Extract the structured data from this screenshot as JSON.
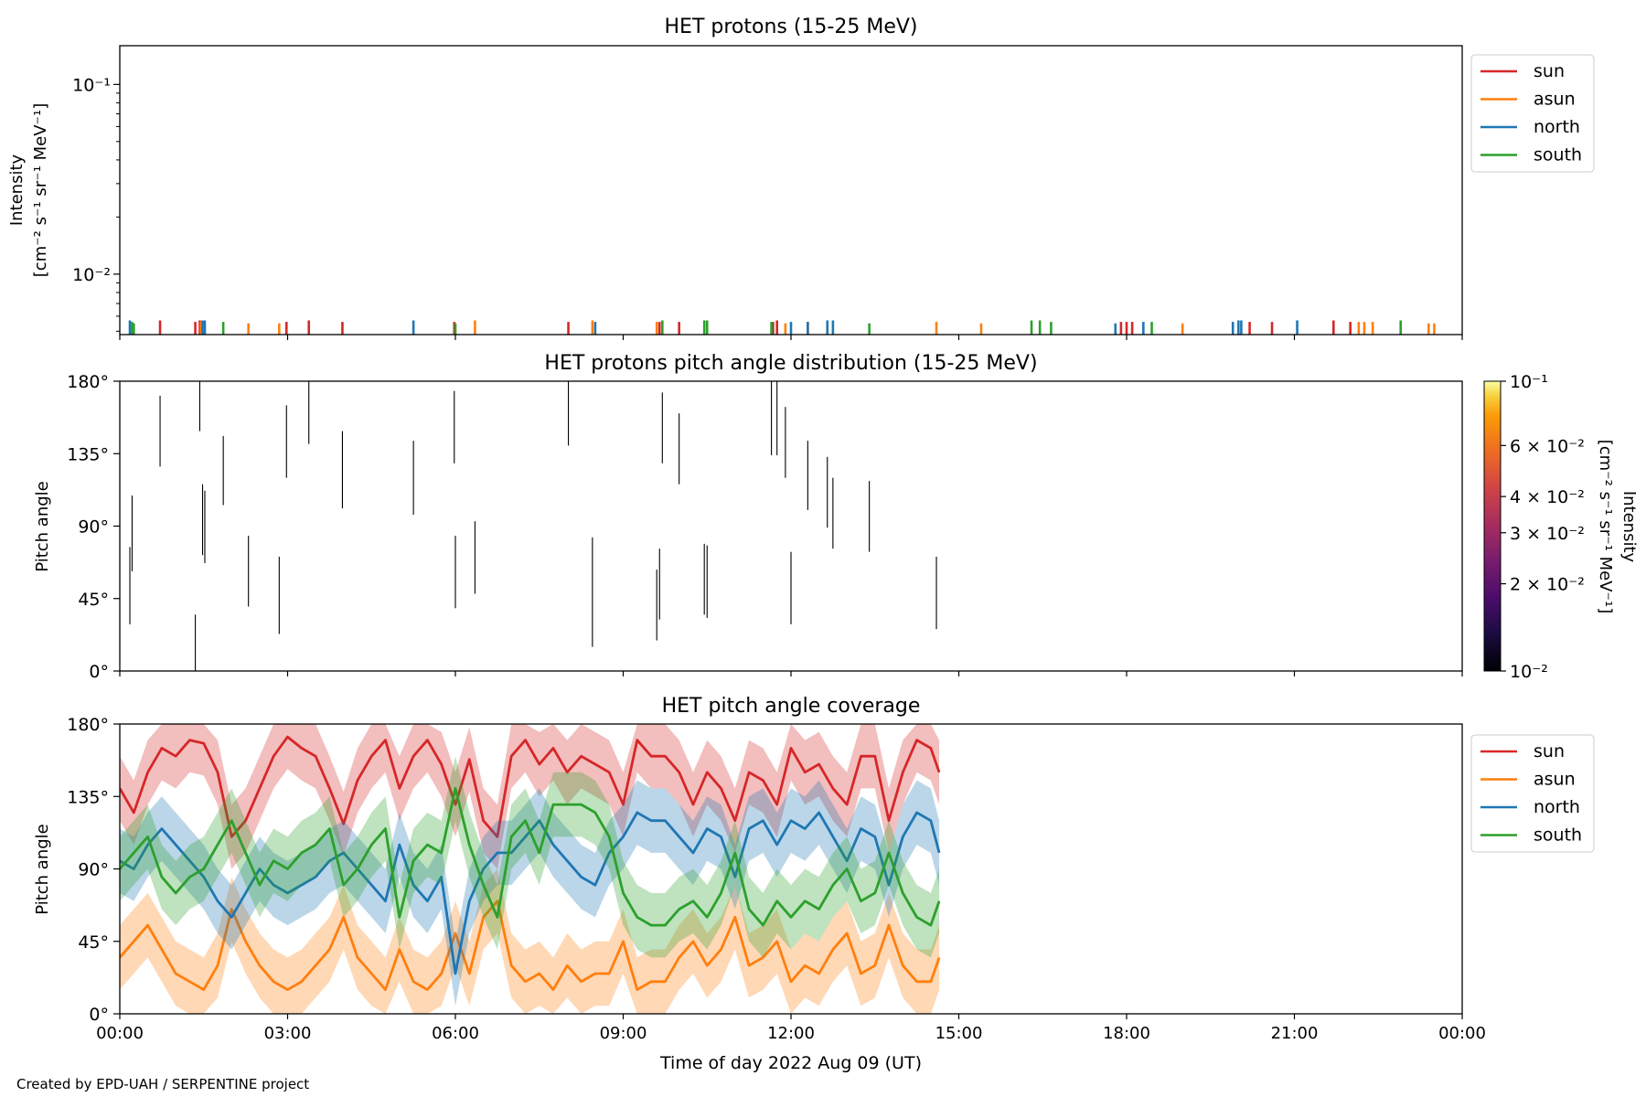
{
  "footer": "Created by EPD-UAH / SERPENTINE project",
  "xlabel": "Time of day 2022 Aug 09 (UT)",
  "colors": {
    "sun": "#d62728",
    "asun": "#ff7f0e",
    "north": "#1f77b4",
    "south": "#2ca02c"
  },
  "chart_data": [
    {
      "type": "line",
      "title": "HET protons (15-25 MeV)",
      "ylabel_line1": "Intensity",
      "ylabel_line2": "[cm⁻² s⁻¹ sr⁻¹ MeV⁻¹]",
      "yscale": "log",
      "ylim": [
        0.0048,
        0.16
      ],
      "xlim_hours": [
        0,
        24
      ],
      "x_tick_labels": [
        "00:00",
        "03:00",
        "06:00",
        "09:00",
        "12:00",
        "15:00",
        "18:00",
        "21:00",
        "00:00"
      ],
      "y_tick_labels": [
        "10⁻²",
        "10⁻¹"
      ],
      "legend_location": "upper right, outside",
      "legend": [
        "sun",
        "asun",
        "north",
        "south"
      ],
      "note": "sparse single-count spikes near the bottom of the panel",
      "series": [
        {
          "name": "sun",
          "x_hours": [
            0.72,
            1.35,
            1.43,
            2.98,
            3.38,
            3.98,
            5.98,
            8.02,
            9.65,
            10.0,
            11.68,
            11.75,
            12.3,
            17.9,
            18.0,
            18.1,
            20.2,
            20.6,
            21.7,
            22.0
          ],
          "values": [
            0.0057,
            0.0056,
            0.0057,
            0.0056,
            0.0057,
            0.0056,
            0.0056,
            0.0056,
            0.0056,
            0.0056,
            0.0056,
            0.0057,
            0.0056,
            0.0056,
            0.0056,
            0.0056,
            0.0056,
            0.0056,
            0.0057,
            0.0056
          ]
        },
        {
          "name": "asun",
          "x_hours": [
            1.45,
            2.3,
            2.85,
            6.35,
            8.45,
            9.6,
            11.9,
            14.6,
            15.4,
            19.0,
            22.15,
            22.25,
            22.4,
            23.4,
            23.5
          ],
          "values": [
            0.0056,
            0.0055,
            0.0055,
            0.0057,
            0.0057,
            0.0056,
            0.0055,
            0.0056,
            0.0055,
            0.0055,
            0.0056,
            0.0056,
            0.0056,
            0.0055,
            0.0055
          ]
        },
        {
          "name": "north",
          "x_hours": [
            0.18,
            1.48,
            1.52,
            5.25,
            8.5,
            12.0,
            12.3,
            12.65,
            12.75,
            17.8,
            18.3,
            19.9,
            20.0,
            20.05,
            21.05
          ],
          "values": [
            0.0057,
            0.0057,
            0.0057,
            0.0057,
            0.0056,
            0.0056,
            0.0056,
            0.0057,
            0.0057,
            0.0055,
            0.0056,
            0.0056,
            0.0057,
            0.0057,
            0.0057
          ]
        },
        {
          "name": "south",
          "x_hours": [
            0.22,
            0.25,
            1.85,
            6.0,
            9.7,
            10.45,
            10.5,
            11.65,
            13.4,
            16.3,
            16.45,
            16.65,
            18.45,
            22.9
          ],
          "values": [
            0.0056,
            0.0055,
            0.0056,
            0.0055,
            0.0057,
            0.0057,
            0.0057,
            0.0056,
            0.0055,
            0.0057,
            0.0057,
            0.0056,
            0.0056,
            0.0057
          ]
        }
      ]
    },
    {
      "type": "heatmap",
      "title": "HET protons pitch angle distribution (15-25 MeV)",
      "ylabel": "Pitch angle",
      "ylim": [
        0,
        180
      ],
      "xlim_hours": [
        0,
        24
      ],
      "y_tick_labels": [
        "0°",
        "45°",
        "90°",
        "135°",
        "180°"
      ],
      "colorbar": {
        "label_line1": "Intensity",
        "label_line2": "[cm⁻² s⁻¹ sr⁻¹ MeV⁻¹]",
        "scale": "log",
        "range": [
          0.01,
          0.1
        ],
        "tick_labels": [
          "10⁻²",
          "2 × 10⁻²",
          "3 × 10⁻²",
          "4 × 10⁻²",
          "6 × 10⁻²",
          "10⁻¹"
        ],
        "tick_values": [
          0.01,
          0.02,
          0.03,
          0.04,
          0.06,
          0.1
        ]
      },
      "segments": [
        {
          "x": 0.18,
          "y0": 29,
          "y1": 77
        },
        {
          "x": 0.22,
          "y0": 62,
          "y1": 109
        },
        {
          "x": 0.72,
          "y0": 127,
          "y1": 171
        },
        {
          "x": 1.35,
          "y0": 0,
          "y1": 35
        },
        {
          "x": 1.43,
          "y0": 149,
          "y1": 180
        },
        {
          "x": 1.48,
          "y0": 72,
          "y1": 116
        },
        {
          "x": 1.52,
          "y0": 67,
          "y1": 112
        },
        {
          "x": 1.85,
          "y0": 103,
          "y1": 146
        },
        {
          "x": 2.3,
          "y0": 40,
          "y1": 84
        },
        {
          "x": 2.85,
          "y0": 23,
          "y1": 71
        },
        {
          "x": 2.98,
          "y0": 120,
          "y1": 165
        },
        {
          "x": 3.38,
          "y0": 141,
          "y1": 180
        },
        {
          "x": 3.98,
          "y0": 101,
          "y1": 149
        },
        {
          "x": 5.25,
          "y0": 97,
          "y1": 143
        },
        {
          "x": 5.98,
          "y0": 129,
          "y1": 174
        },
        {
          "x": 6.0,
          "y0": 39,
          "y1": 84
        },
        {
          "x": 6.35,
          "y0": 48,
          "y1": 93
        },
        {
          "x": 8.02,
          "y0": 140,
          "y1": 180
        },
        {
          "x": 8.45,
          "y0": 15,
          "y1": 83
        },
        {
          "x": 9.6,
          "y0": 19,
          "y1": 63
        },
        {
          "x": 9.65,
          "y0": 32,
          "y1": 76
        },
        {
          "x": 9.7,
          "y0": 129,
          "y1": 173
        },
        {
          "x": 10.0,
          "y0": 116,
          "y1": 160
        },
        {
          "x": 10.45,
          "y0": 35,
          "y1": 79
        },
        {
          "x": 10.5,
          "y0": 33,
          "y1": 78
        },
        {
          "x": 11.65,
          "y0": 134,
          "y1": 180
        },
        {
          "x": 11.75,
          "y0": 134,
          "y1": 180
        },
        {
          "x": 11.9,
          "y0": 120,
          "y1": 164
        },
        {
          "x": 12.0,
          "y0": 29,
          "y1": 74
        },
        {
          "x": 12.3,
          "y0": 100,
          "y1": 143
        },
        {
          "x": 12.65,
          "y0": 89,
          "y1": 133
        },
        {
          "x": 12.75,
          "y0": 76,
          "y1": 120
        },
        {
          "x": 13.4,
          "y0": 74,
          "y1": 118
        },
        {
          "x": 14.6,
          "y0": 26,
          "y1": 71
        }
      ]
    },
    {
      "type": "area",
      "title": "HET pitch angle coverage",
      "ylabel": "Pitch angle",
      "ylim": [
        0,
        180
      ],
      "xlim_hours": [
        0,
        24
      ],
      "y_tick_labels": [
        "0°",
        "45°",
        "90°",
        "135°",
        "180°"
      ],
      "legend_location": "upper right, outside",
      "legend": [
        "sun",
        "asun",
        "north",
        "south"
      ],
      "band_half_width": 20,
      "data_end_hours": 14.65,
      "x_hours": [
        0,
        0.25,
        0.5,
        0.75,
        1,
        1.25,
        1.5,
        1.75,
        2,
        2.25,
        2.5,
        2.75,
        3,
        3.25,
        3.5,
        3.75,
        4,
        4.25,
        4.5,
        4.75,
        5,
        5.25,
        5.5,
        5.75,
        6,
        6.25,
        6.5,
        6.75,
        7,
        7.25,
        7.5,
        7.75,
        8,
        8.25,
        8.5,
        8.75,
        9,
        9.25,
        9.5,
        9.75,
        10,
        10.25,
        10.5,
        10.75,
        11,
        11.25,
        11.5,
        11.75,
        12,
        12.25,
        12.5,
        12.75,
        13,
        13.25,
        13.5,
        13.75,
        14,
        14.25,
        14.5,
        14.65
      ],
      "series": [
        {
          "name": "sun",
          "values": [
            140,
            125,
            150,
            165,
            160,
            170,
            168,
            150,
            110,
            120,
            140,
            160,
            172,
            165,
            160,
            140,
            118,
            145,
            160,
            170,
            140,
            160,
            170,
            155,
            130,
            158,
            120,
            110,
            160,
            170,
            155,
            165,
            150,
            160,
            155,
            150,
            130,
            170,
            160,
            160,
            150,
            130,
            150,
            140,
            120,
            150,
            145,
            130,
            165,
            150,
            155,
            140,
            130,
            160,
            160,
            120,
            150,
            170,
            165,
            150
          ]
        },
        {
          "name": "asun",
          "values": [
            35,
            45,
            55,
            40,
            25,
            20,
            15,
            30,
            65,
            45,
            30,
            20,
            15,
            20,
            30,
            40,
            60,
            35,
            25,
            15,
            40,
            20,
            15,
            25,
            50,
            25,
            60,
            70,
            30,
            20,
            25,
            15,
            30,
            20,
            25,
            25,
            45,
            15,
            20,
            20,
            35,
            45,
            30,
            40,
            60,
            30,
            35,
            45,
            20,
            30,
            25,
            40,
            50,
            25,
            30,
            55,
            30,
            20,
            20,
            35
          ]
        },
        {
          "name": "north",
          "values": [
            95,
            90,
            105,
            115,
            105,
            95,
            85,
            70,
            60,
            75,
            90,
            80,
            75,
            80,
            85,
            95,
            100,
            90,
            80,
            70,
            105,
            80,
            70,
            85,
            25,
            70,
            90,
            100,
            100,
            110,
            120,
            105,
            95,
            85,
            80,
            100,
            110,
            125,
            120,
            120,
            110,
            100,
            115,
            110,
            85,
            115,
            120,
            105,
            120,
            115,
            125,
            110,
            95,
            115,
            110,
            80,
            110,
            125,
            120,
            100
          ]
        },
        {
          "name": "south",
          "values": [
            90,
            100,
            110,
            85,
            75,
            85,
            90,
            105,
            120,
            100,
            80,
            95,
            90,
            100,
            105,
            115,
            80,
            90,
            105,
            115,
            60,
            95,
            105,
            100,
            140,
            105,
            80,
            60,
            110,
            120,
            100,
            130,
            130,
            130,
            125,
            110,
            75,
            60,
            55,
            55,
            65,
            70,
            60,
            75,
            100,
            65,
            55,
            70,
            60,
            70,
            65,
            80,
            90,
            70,
            75,
            100,
            75,
            60,
            55,
            70
          ]
        }
      ]
    }
  ]
}
